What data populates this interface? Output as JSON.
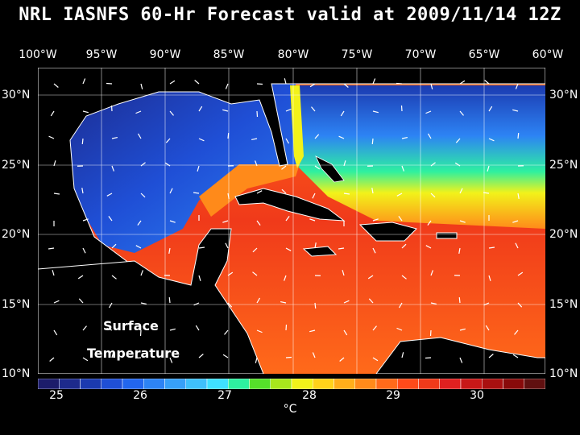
{
  "title": "NRL IASNFS  60-Hr Forecast valid at 2009/11/14 12Z",
  "lon_ticks": [
    "100°W",
    "95°W",
    "90°W",
    "85°W",
    "80°W",
    "75°W",
    "70°W",
    "65°W",
    "60°W"
  ],
  "lat_ticks": [
    "30°N",
    "25°N",
    "20°N",
    "15°N",
    "10°N"
  ],
  "caption_line1": "Surface",
  "caption_line2": "Temperature",
  "colorbar": {
    "labels": [
      "25",
      "26",
      "27",
      "28",
      "29",
      "30"
    ],
    "unit": "°C",
    "colors": [
      "#1c1c6a",
      "#1d2a8c",
      "#1b3ab0",
      "#1f4fd6",
      "#2266ee",
      "#2d83f4",
      "#37a0f8",
      "#3fc0fb",
      "#3fe0ff",
      "#2ef0a0",
      "#55e02a",
      "#a8e61c",
      "#f2f21a",
      "#ffd21a",
      "#ffae1a",
      "#ff8a1a",
      "#ff6a1a",
      "#ff4a1a",
      "#f03a1a",
      "#e02020",
      "#c81818",
      "#a81010",
      "#880a0a",
      "#601010"
    ]
  }
}
